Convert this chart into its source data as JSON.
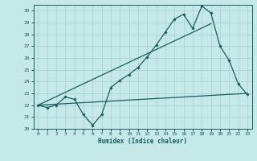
{
  "xlabel": "Humidex (Indice chaleur)",
  "xlim": [
    -0.5,
    23.5
  ],
  "ylim": [
    20.0,
    30.5
  ],
  "yticks": [
    20,
    21,
    22,
    23,
    24,
    25,
    26,
    27,
    28,
    29,
    30
  ],
  "xticks": [
    0,
    1,
    2,
    3,
    4,
    5,
    6,
    7,
    8,
    9,
    10,
    11,
    12,
    13,
    14,
    15,
    16,
    17,
    18,
    19,
    20,
    21,
    22,
    23
  ],
  "bg_color": "#c5e8e8",
  "line_color": "#1a5c5c",
  "grid_color": "#a8d0d0",
  "line1_x": [
    0,
    1,
    2,
    3,
    4,
    5,
    6,
    7,
    8,
    9,
    10,
    11,
    12,
    13,
    14,
    15,
    16,
    17,
    18,
    19,
    20,
    21,
    22,
    23
  ],
  "line1_y": [
    22.0,
    21.8,
    22.0,
    22.7,
    22.5,
    21.2,
    20.3,
    21.2,
    23.5,
    24.1,
    24.6,
    25.2,
    26.1,
    27.1,
    28.2,
    29.3,
    29.7,
    28.5,
    30.4,
    29.8,
    27.0,
    25.8,
    23.8,
    22.9
  ],
  "line2_x": [
    0,
    19
  ],
  "line2_y": [
    22.0,
    28.9
  ],
  "line3_x": [
    0,
    23
  ],
  "line3_y": [
    22.0,
    23.0
  ]
}
